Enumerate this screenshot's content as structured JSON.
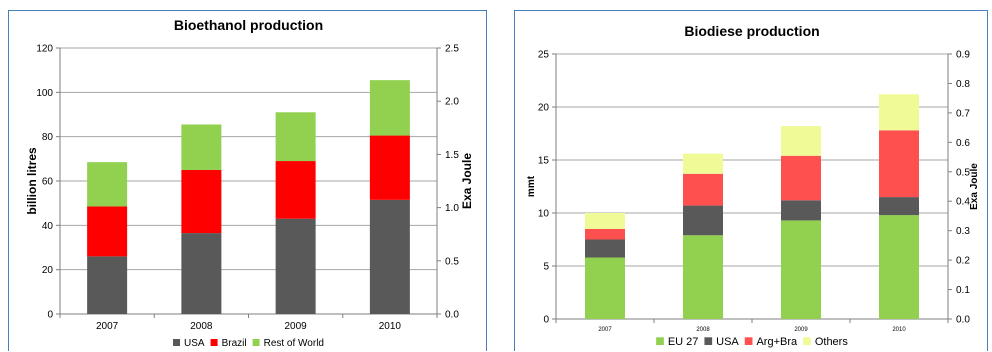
{
  "chart_data": [
    {
      "type": "bar",
      "stacked": true,
      "title": "Bioethanol production",
      "xlabel": "",
      "ylabel": "billion litres",
      "y2label": "Exa Joule",
      "categories": [
        "2007",
        "2008",
        "2009",
        "2010"
      ],
      "ylim": [
        0,
        120
      ],
      "yticks": [
        "0",
        "20",
        "40",
        "60",
        "80",
        "100",
        "120"
      ],
      "y2lim": [
        0,
        2.5
      ],
      "y2ticks": [
        "0.0",
        "0.5",
        "1.0",
        "1.5",
        "2.0",
        "2.5"
      ],
      "grid": true,
      "legend": "bottom",
      "series": [
        {
          "name": "USA",
          "color": "#595959",
          "values": [
            26,
            36.5,
            43,
            51.5
          ]
        },
        {
          "name": "Brazil",
          "color": "#ff0000",
          "values": [
            22.5,
            28.5,
            26,
            29
          ]
        },
        {
          "name": "Rest of World",
          "color": "#92d050",
          "values": [
            20,
            20.5,
            22,
            25
          ]
        }
      ]
    },
    {
      "type": "bar",
      "stacked": true,
      "title": "Biodiese production",
      "xlabel": "",
      "ylabel": "mmt",
      "y2label": "Exa Joule",
      "categories": [
        "2007",
        "2008",
        "2009",
        "2010"
      ],
      "ylim": [
        0,
        25
      ],
      "yticks": [
        "0",
        "5",
        "10",
        "15",
        "20",
        "25"
      ],
      "y2lim": [
        0,
        0.9
      ],
      "y2ticks": [
        "0.0",
        "0.1",
        "0.2",
        "0.3",
        "0.4",
        "0.5",
        "0.6",
        "0.7",
        "0.8",
        "0.9"
      ],
      "grid": true,
      "legend": "bottom",
      "series": [
        {
          "name": "EU 27",
          "color": "#92d050",
          "values": [
            5.8,
            7.9,
            9.3,
            9.8
          ]
        },
        {
          "name": "USA",
          "color": "#595959",
          "values": [
            1.7,
            2.8,
            1.9,
            1.7
          ]
        },
        {
          "name": "Arg+Bra",
          "color": "#ff5050",
          "values": [
            1.0,
            3.0,
            4.2,
            6.3
          ]
        },
        {
          "name": "Others",
          "color": "#f0fa96",
          "values": [
            1.5,
            1.9,
            2.8,
            3.4
          ]
        }
      ]
    }
  ]
}
